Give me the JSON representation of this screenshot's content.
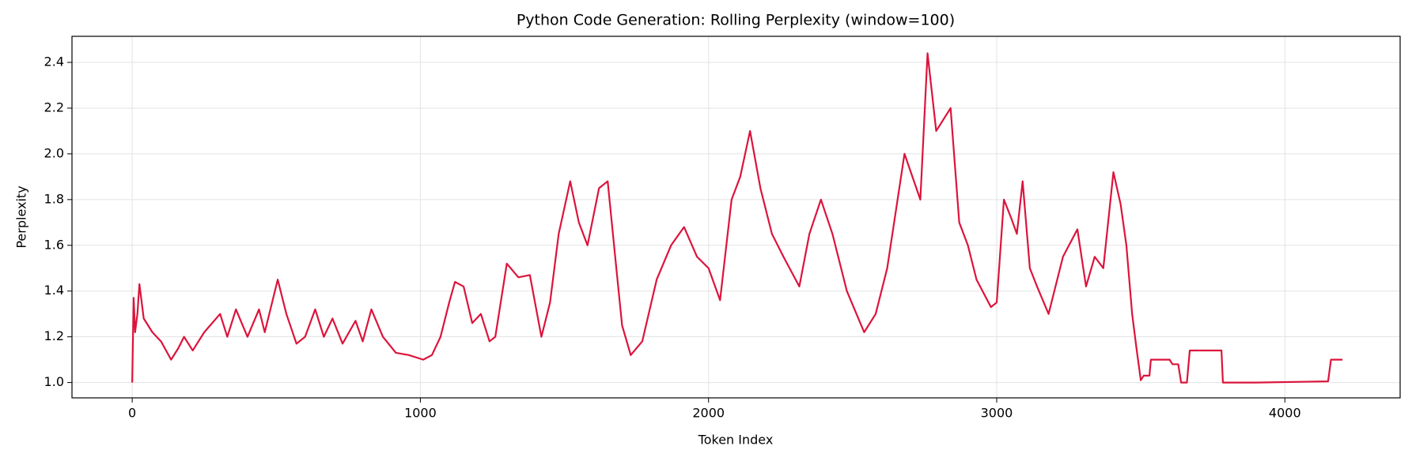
{
  "chart_data": {
    "type": "line",
    "title": "Python Code Generation: Rolling Perplexity (window=100)",
    "x_label": "Token Index",
    "y_label": "Perplexity",
    "xlim": [
      -209,
      4400
    ],
    "ylim": [
      0.933,
      2.514
    ],
    "xticks": [
      0,
      1000,
      2000,
      3000,
      4000
    ],
    "yticks": [
      {
        "value": 1.0,
        "label": "1.0"
      },
      {
        "value": 1.2,
        "label": "1.2"
      },
      {
        "value": 1.4,
        "label": "1.4"
      },
      {
        "value": 1.6,
        "label": "1.6"
      },
      {
        "value": 1.8,
        "label": "1.8"
      },
      {
        "value": 2.0,
        "label": "2.0"
      },
      {
        "value": 2.2,
        "label": "2.2"
      },
      {
        "value": 2.4,
        "label": "2.4"
      }
    ],
    "grid": true,
    "x": [
      0,
      5,
      10,
      18,
      25,
      40,
      70,
      100,
      135,
      160,
      180,
      210,
      250,
      305,
      330,
      360,
      400,
      440,
      460,
      505,
      535,
      570,
      600,
      635,
      665,
      695,
      730,
      775,
      800,
      830,
      870,
      915,
      960,
      1010,
      1040,
      1070,
      1100,
      1120,
      1150,
      1180,
      1210,
      1240,
      1260,
      1300,
      1340,
      1380,
      1420,
      1450,
      1480,
      1520,
      1550,
      1580,
      1620,
      1650,
      1680,
      1700,
      1730,
      1770,
      1820,
      1870,
      1915,
      1960,
      2000,
      2040,
      2080,
      2110,
      2144,
      2180,
      2220,
      2260,
      2315,
      2350,
      2390,
      2430,
      2480,
      2540,
      2580,
      2620,
      2680,
      2735,
      2760,
      2790,
      2840,
      2870,
      2900,
      2930,
      2980,
      3000,
      3025,
      3050,
      3070,
      3090,
      3115,
      3140,
      3180,
      3230,
      3280,
      3310,
      3340,
      3370,
      3405,
      3430,
      3450,
      3470,
      3485,
      3500,
      3510,
      3530,
      3535,
      3600,
      3610,
      3630,
      3640,
      3660,
      3670,
      3780,
      3785,
      3900,
      4150,
      4160,
      4200
    ],
    "series": [
      {
        "name": "Perplexity",
        "color": "#dc143c",
        "values": [
          1.0,
          1.37,
          1.22,
          1.3,
          1.43,
          1.28,
          1.22,
          1.18,
          1.1,
          1.15,
          1.2,
          1.14,
          1.22,
          1.3,
          1.2,
          1.32,
          1.2,
          1.32,
          1.22,
          1.45,
          1.3,
          1.17,
          1.2,
          1.32,
          1.2,
          1.28,
          1.17,
          1.27,
          1.18,
          1.32,
          1.2,
          1.13,
          1.12,
          1.1,
          1.12,
          1.2,
          1.35,
          1.44,
          1.42,
          1.26,
          1.3,
          1.18,
          1.2,
          1.52,
          1.46,
          1.47,
          1.2,
          1.35,
          1.65,
          1.88,
          1.7,
          1.6,
          1.85,
          1.88,
          1.5,
          1.25,
          1.12,
          1.18,
          1.45,
          1.6,
          1.68,
          1.55,
          1.5,
          1.36,
          1.8,
          1.9,
          2.1,
          1.85,
          1.65,
          1.55,
          1.42,
          1.65,
          1.8,
          1.65,
          1.4,
          1.22,
          1.3,
          1.5,
          2.0,
          1.8,
          2.44,
          2.1,
          2.2,
          1.7,
          1.6,
          1.45,
          1.33,
          1.35,
          1.8,
          1.72,
          1.65,
          1.88,
          1.5,
          1.42,
          1.3,
          1.55,
          1.67,
          1.42,
          1.55,
          1.5,
          1.92,
          1.78,
          1.6,
          1.3,
          1.15,
          1.01,
          1.03,
          1.03,
          1.1,
          1.1,
          1.08,
          1.08,
          1.0,
          1.0,
          1.14,
          1.14,
          1.0,
          1.0,
          1.005,
          1.1,
          1.1
        ]
      }
    ]
  }
}
